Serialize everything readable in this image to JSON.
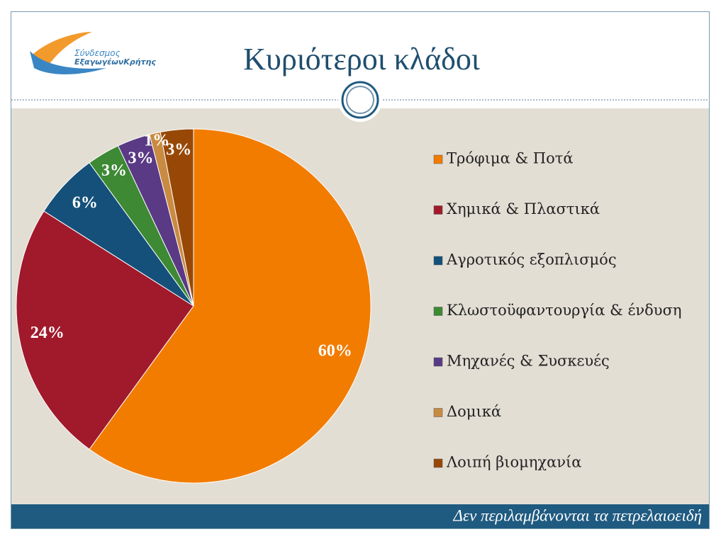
{
  "logo": {
    "line1": "Σύνδεσμος",
    "line2": "ΕξαγωγέωνΚρήτης"
  },
  "footer": "Δεν περιλαμβάνονται τα πετρελαιοειδή",
  "chart_data": {
    "type": "pie",
    "title": "Κυριότεροι κλάδοι",
    "categories": [
      "Τρόφιμα & Ποτά",
      "Χημικά & Πλαστικά",
      "Αγροτικός εξοπλισμός",
      "Κλωστοϋφαντουργία & ένδυση",
      "Μηχανές & Συσκευές",
      "Δομικά",
      "Λοιπή βιομηχανία"
    ],
    "values": [
      60,
      24,
      6,
      3,
      3,
      1,
      3
    ],
    "value_labels": [
      "60%",
      "24%",
      "6%",
      "3%",
      "3%",
      "1%",
      "3%"
    ],
    "colors": [
      "#f27c00",
      "#a01a2b",
      "#14507a",
      "#3d8934",
      "#5a3985",
      "#c98b42",
      "#984806"
    ],
    "legend": "right"
  }
}
